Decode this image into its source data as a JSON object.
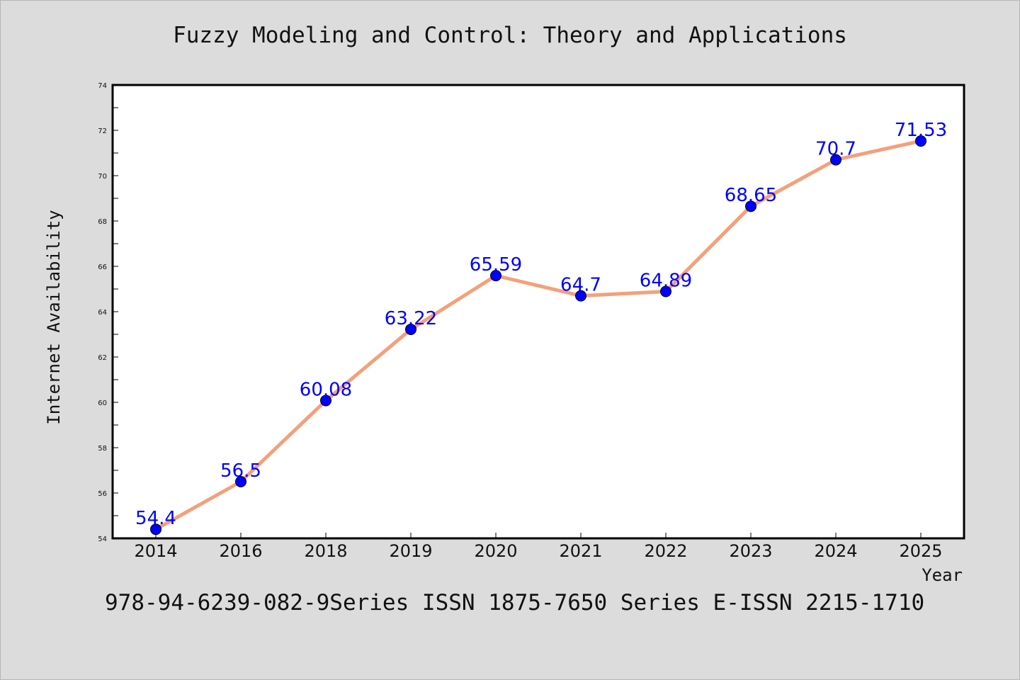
{
  "title": "Fuzzy Modeling and Control: Theory and Applications",
  "footer": "978-94-6239-082-9Series ISSN 1875-7650 Series E-ISSN 2215-1710",
  "colors": {
    "background": "#dcdcdc",
    "plot_background": "#ffffff",
    "line": "#f4a07a",
    "marker": "#0000ff",
    "data_label": "#0000ff",
    "axis": "#000000"
  },
  "chart_data": {
    "type": "line",
    "title": "Fuzzy Modeling and Control: Theory and Applications",
    "xlabel": "Year",
    "ylabel": "Internet Availability",
    "categories": [
      "2014",
      "2016",
      "2018",
      "2019",
      "2020",
      "2021",
      "2022",
      "2023",
      "2024",
      "2025"
    ],
    "series": [
      {
        "values": [
          54.4,
          56.5,
          60.08,
          63.22,
          65.59,
          64.7,
          64.89,
          68.65,
          70.7,
          71.53
        ]
      }
    ],
    "data_labels": [
      "54.4",
      "56.5",
      "60.08",
      "63.22",
      "65.59",
      "64.7",
      "64.89",
      "68.65",
      "70.7",
      "71.53"
    ],
    "ylim": [
      54,
      74
    ],
    "yticks": [
      "54",
      "56",
      "58",
      "60",
      "62",
      "64",
      "66",
      "68",
      "70",
      "72",
      "74"
    ],
    "grid": false,
    "legend": "none",
    "markers": "filled circles"
  }
}
